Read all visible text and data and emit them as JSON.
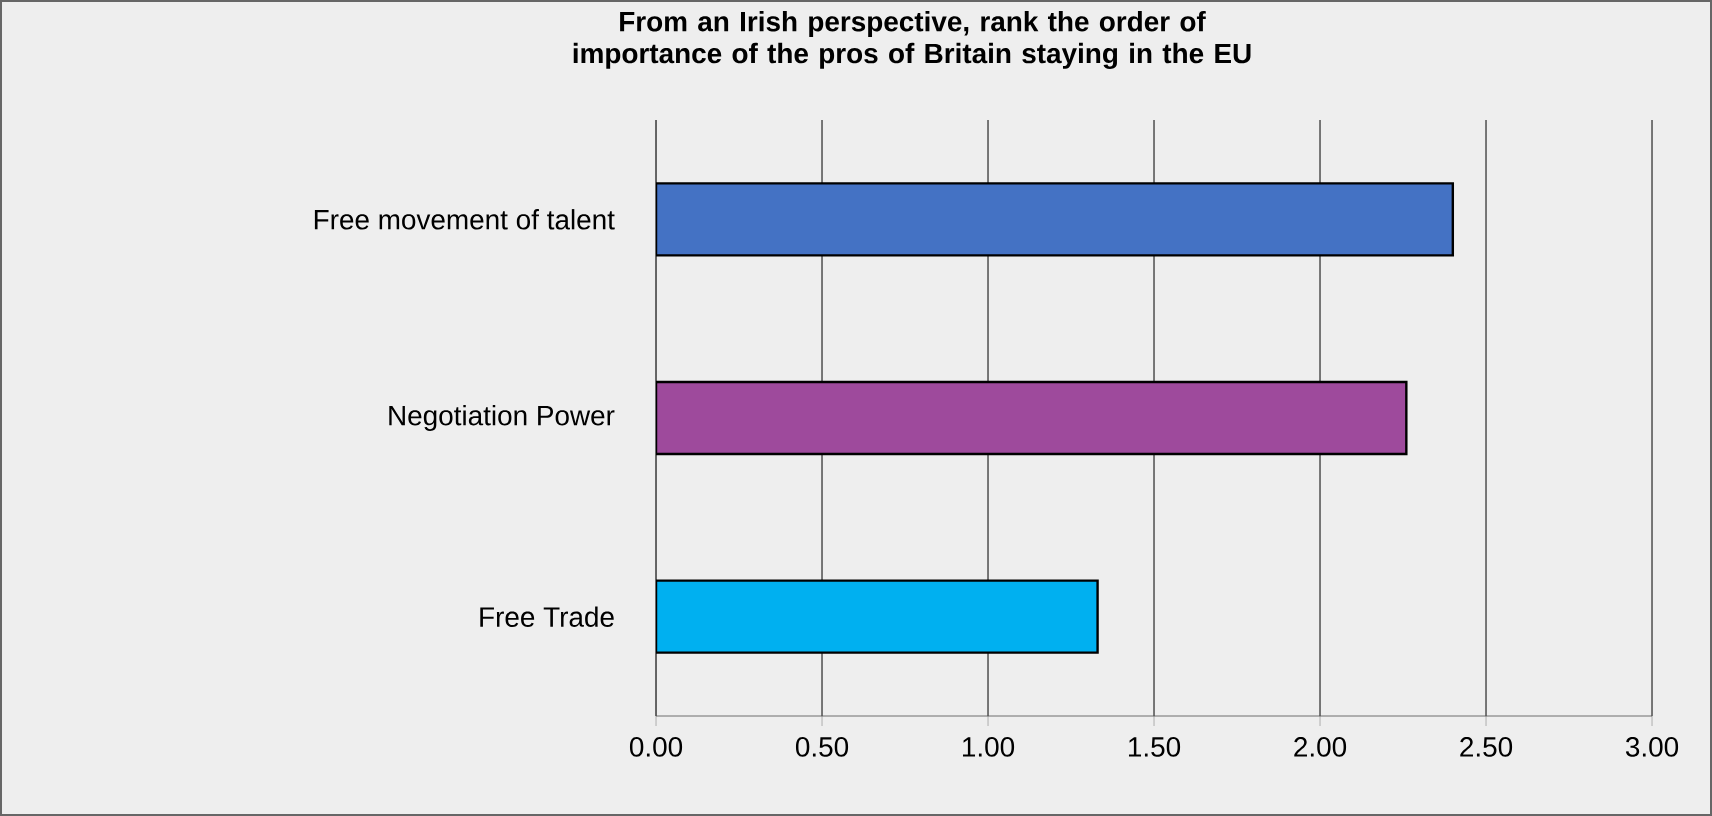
{
  "chart_data": {
    "type": "bar",
    "orientation": "horizontal",
    "title": "From an Irish perspective, rank the order of importance of the pros of Britain staying in the EU",
    "categories": [
      "Free movement of talent",
      "Negotiation Power",
      "Free Trade"
    ],
    "values": [
      2.4,
      2.26,
      1.33
    ],
    "colors": [
      "#4472c4",
      "#9e4a9c",
      "#00b0f0"
    ],
    "xlim": [
      0,
      3
    ],
    "xticks": [
      {
        "value": 0,
        "label": "0.00"
      },
      {
        "value": 0.5,
        "label": "0.50"
      },
      {
        "value": 1,
        "label": "1.00"
      },
      {
        "value": 1.5,
        "label": "1.50"
      },
      {
        "value": 2,
        "label": "2.00"
      },
      {
        "value": 2.5,
        "label": "2.50"
      },
      {
        "value": 3,
        "label": "3.00"
      }
    ],
    "grid": "x"
  }
}
